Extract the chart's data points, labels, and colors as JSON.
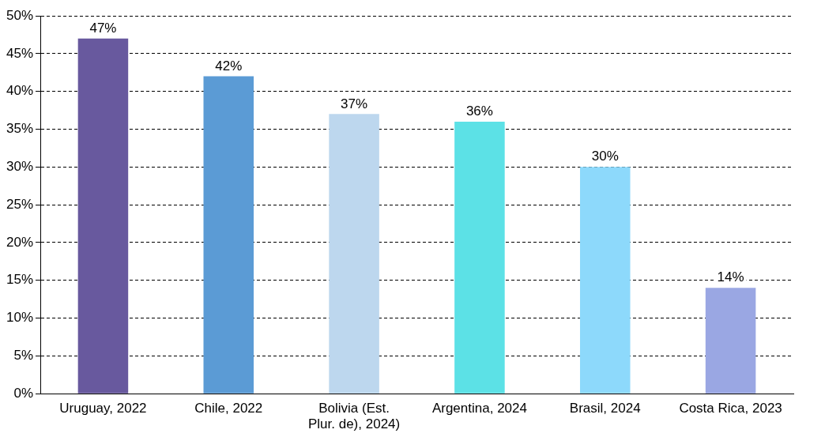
{
  "chart_data": {
    "type": "bar",
    "categories": [
      "Uruguay, 2022",
      "Chile, 2022",
      "Bolivia (Est. Plur. de), 2024)",
      "Argentina, 2024",
      "Brasil, 2024",
      "Costa Rica, 2023"
    ],
    "values": [
      47,
      42,
      37,
      36,
      30,
      14
    ],
    "colors": [
      "#68599e",
      "#5b9bd5",
      "#bdd7ee",
      "#5ce1e6",
      "#8dd9fb",
      "#9aa7e3"
    ],
    "value_labels": [
      "47%",
      "42%",
      "37%",
      "36%",
      "30%",
      "14%"
    ],
    "ylim": [
      0,
      50
    ],
    "yticks": [
      {
        "value": 0,
        "label": "0%"
      },
      {
        "value": 5,
        "label": "5%"
      },
      {
        "value": 10,
        "label": "10%"
      },
      {
        "value": 15,
        "label": "15%"
      },
      {
        "value": 20,
        "label": "20%"
      },
      {
        "value": 25,
        "label": "25%"
      },
      {
        "value": 30,
        "label": "30%"
      },
      {
        "value": 35,
        "label": "35%"
      },
      {
        "value": 40,
        "label": "40%"
      },
      {
        "value": 45,
        "label": "45%"
      },
      {
        "value": 50,
        "label": "50%"
      }
    ],
    "grid": "y",
    "legend": false
  }
}
